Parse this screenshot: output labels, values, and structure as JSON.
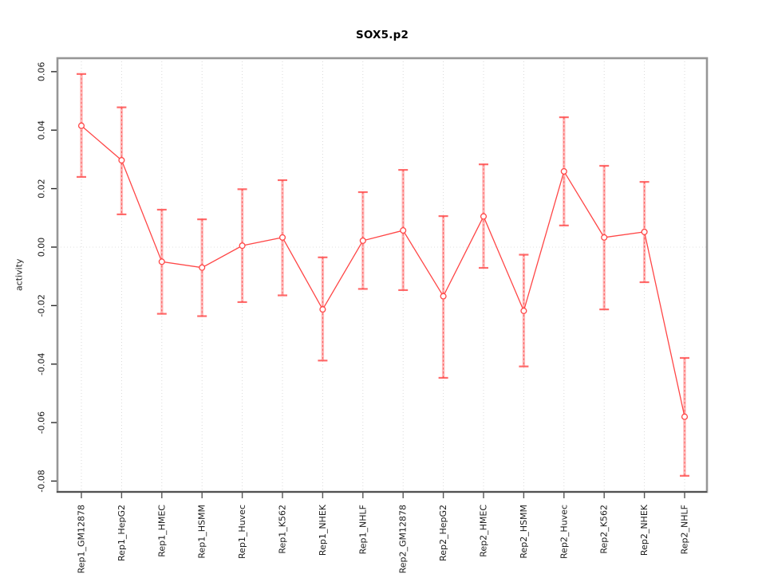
{
  "figure": {
    "title": "SOX5.p2",
    "ylabel": "activity"
  },
  "chart_data": {
    "type": "line",
    "title": "SOX5.p2",
    "xlabel": "",
    "ylabel": "activity",
    "legend_position": "none",
    "grid": {
      "vertical": "dotted line at every category",
      "horizontal": "dotted line at y=0 only"
    },
    "marker": "open-circle",
    "error_bars": true,
    "categories": [
      "Rep1_GM12878",
      "Rep1_HepG2",
      "Rep1_HMEC",
      "Rep1_HSMM",
      "Rep1_Huvec",
      "Rep1_K562",
      "Rep1_NHEK",
      "Rep1_NHLF",
      "Rep2_GM12878",
      "Rep2_HepG2",
      "Rep2_HMEC",
      "Rep2_HSMM",
      "Rep2_Huvec",
      "Rep2_K562",
      "Rep2_NHEK",
      "Rep2_NHLF"
    ],
    "series": [
      {
        "name": "activity",
        "values": [
          0.0415,
          0.0297,
          -0.005,
          -0.007,
          0.0005,
          0.0033,
          -0.0213,
          0.0022,
          0.0057,
          -0.0168,
          0.0105,
          -0.0218,
          0.0259,
          0.0033,
          0.0052,
          -0.058
        ],
        "err_low": [
          0.024,
          0.0112,
          -0.0228,
          -0.0236,
          -0.0188,
          -0.0165,
          -0.0388,
          -0.0143,
          -0.0147,
          -0.0447,
          -0.0071,
          -0.0408,
          0.0074,
          -0.0213,
          -0.012,
          -0.0782
        ],
        "err_high": [
          0.0592,
          0.0478,
          0.0128,
          0.0095,
          0.0198,
          0.0229,
          -0.0035,
          0.0188,
          0.0264,
          0.0106,
          0.0283,
          -0.0026,
          0.0444,
          0.0278,
          0.0223,
          -0.0379
        ]
      }
    ],
    "yticks": [
      -0.08,
      -0.06,
      -0.04,
      -0.02,
      0.0,
      0.02,
      0.04,
      0.06
    ],
    "ylim": [
      -0.0837,
      0.0646
    ],
    "colors": {
      "line": "#ff4646",
      "marker_fill": "#ffffff",
      "errorbar_band": "rgba(255,85,85,0.40)",
      "errorbar_cap": "rgba(255,70,70,0.80)",
      "grid": "#d9d9d9",
      "zero_line": "#e2e2e2",
      "frame": "#969696",
      "axis_line": "#2b2b2b",
      "tick": "#555555",
      "tick_label": "#1a1a1a"
    }
  }
}
